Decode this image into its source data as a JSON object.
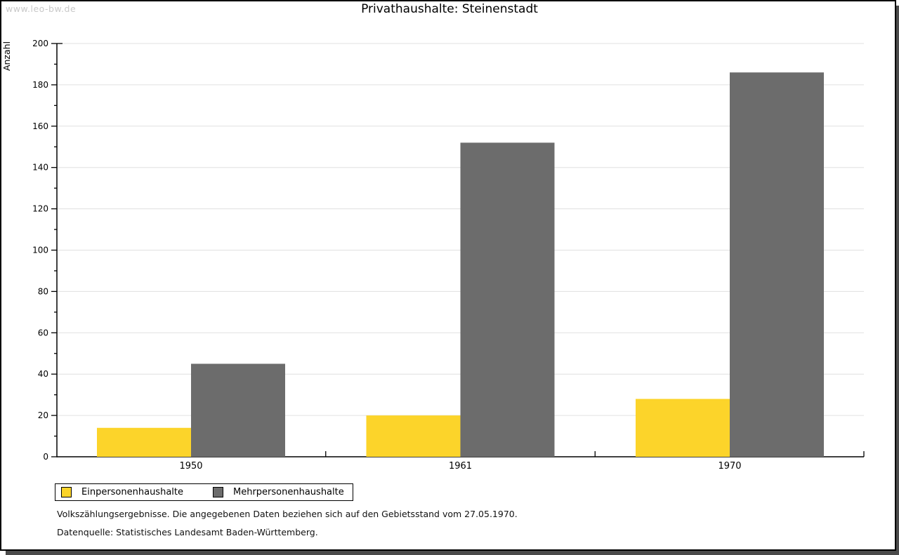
{
  "watermark": "www.leo-bw.de",
  "frame": {
    "border_color": "#000000",
    "shadow_color": "#4b4b4b"
  },
  "chart_data": {
    "type": "bar",
    "title": "Privathaushalte: Steinenstadt",
    "ylabel": "Anzahl",
    "xlabel": "",
    "categories": [
      "1950",
      "1961",
      "1970"
    ],
    "series": [
      {
        "name": "Einpersonenhaushalte",
        "color": "#fcd42a",
        "values": [
          14,
          20,
          28
        ]
      },
      {
        "name": "Mehrpersonenhaushalte",
        "color": "#6c6c6c",
        "values": [
          45,
          152,
          186
        ]
      }
    ],
    "ylim": [
      0,
      200
    ],
    "yticks": [
      0,
      20,
      40,
      60,
      80,
      100,
      120,
      140,
      160,
      180,
      200
    ],
    "ytick_minor_step": 10,
    "grid": "horizontal-major",
    "gridline_color": "#e0e0e0",
    "axis_color": "#000000",
    "legend_position": "bottom-left"
  },
  "footer": {
    "line1": "Volkszählungsergebnisse. Die angegebenen Daten beziehen sich auf den Gebietsstand vom 27.05.1970.",
    "line2": "Datenquelle: Statistisches Landesamt Baden-Württemberg."
  }
}
